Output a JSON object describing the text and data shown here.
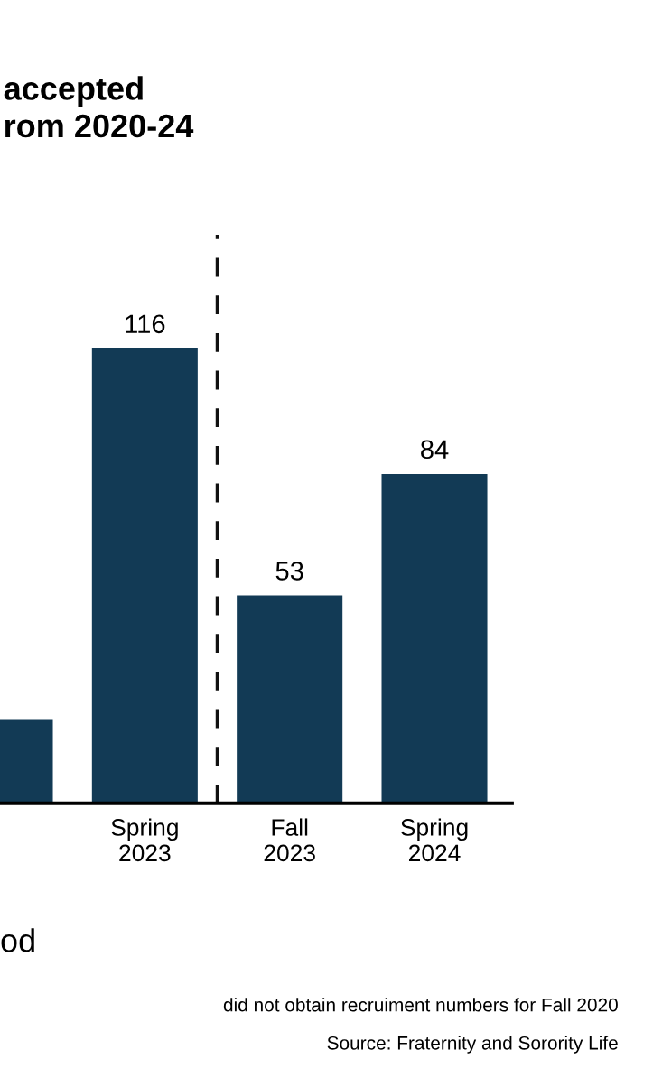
{
  "chart_data": {
    "type": "bar",
    "title": "accepted\nrom 2020-24",
    "xlabel": "od",
    "categories": [
      null,
      "Spring\n2023",
      "Fall\n2023",
      "Spring\n2024"
    ],
    "values": [
      21.5,
      116,
      53,
      84
    ],
    "value_labels": [
      null,
      "116",
      "53",
      "84"
    ],
    "color": "#123a55",
    "annotations": [
      "did not obtain recruiment numbers for Fall 2020",
      "Source: Fraternity and Sorority Life"
    ],
    "grid": false,
    "legend": false
  }
}
